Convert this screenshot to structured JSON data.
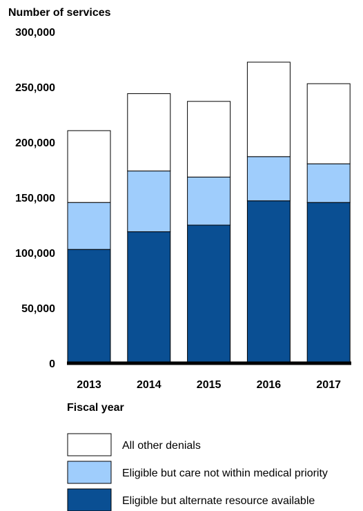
{
  "chart_data": {
    "type": "bar",
    "stacked": true,
    "ylabel": "Number of services",
    "xlabel": "Fiscal year",
    "ylim": [
      0,
      300000
    ],
    "yticks": [
      0,
      50000,
      100000,
      150000,
      200000,
      250000,
      300000
    ],
    "ytick_labels": [
      "0",
      "50,000",
      "100,000",
      "150,000",
      "200,000",
      "250,000",
      "300,000"
    ],
    "categories": [
      "2013",
      "2014",
      "2015",
      "2016",
      "2017"
    ],
    "grid": false,
    "legend_position": "bottom",
    "series": [
      {
        "name": "Eligible but alternate resource available",
        "color": "#0a4f93",
        "values": [
          103000,
          119000,
          125000,
          147000,
          145500
        ]
      },
      {
        "name": "Eligible but care not within medical priority",
        "color": "#9fcdfc",
        "values": [
          42500,
          55000,
          43500,
          40000,
          35000
        ]
      },
      {
        "name": "All other denials",
        "color": "#ffffff",
        "values": [
          65000,
          70000,
          68500,
          85500,
          72500
        ]
      }
    ]
  }
}
